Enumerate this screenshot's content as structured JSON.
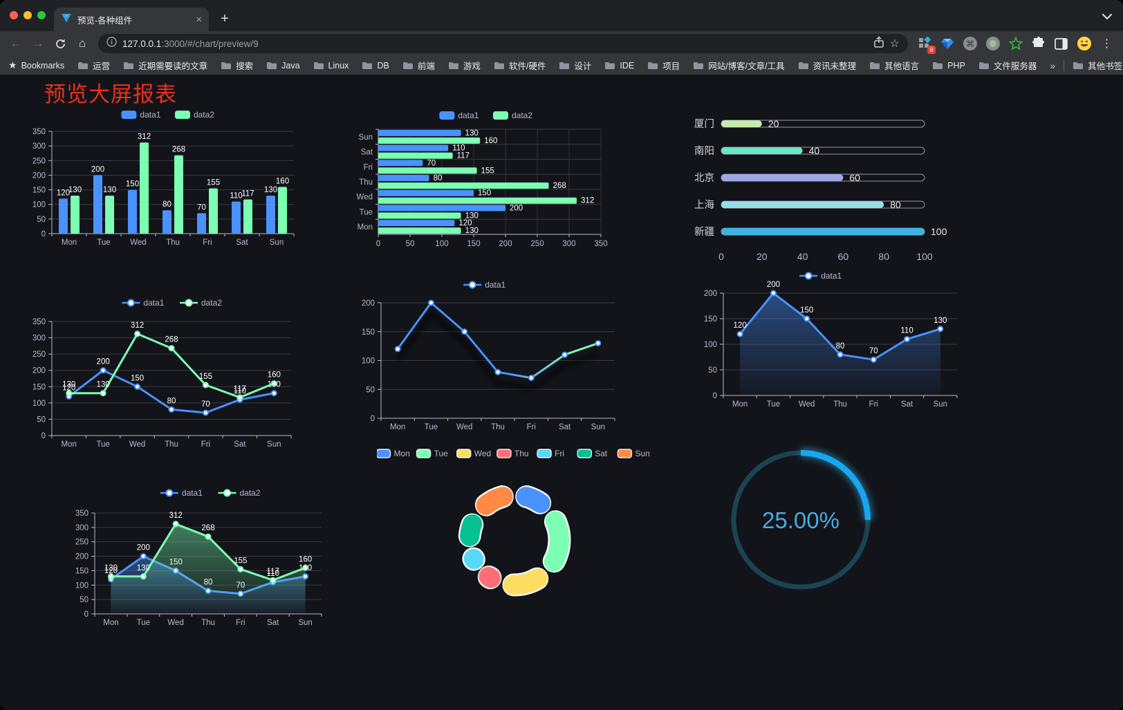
{
  "browser": {
    "tab": {
      "title": "预览-各种组件"
    },
    "url": {
      "host": "127.0.0.1",
      "rest": ":3000/#/chart/preview/9"
    },
    "glyphs": {
      "back": "←",
      "forward": "→",
      "home": "⌂",
      "star": "☆",
      "bookmarks_star": "★",
      "close_tab": "×",
      "new_tab": "+",
      "menu": "⋮",
      "cmd": "⌘",
      "overflow": "»"
    },
    "extensions": {
      "badge": "9"
    },
    "bookmarks": {
      "label": "Bookmarks",
      "items": [
        "运营",
        "近期需要读的文章",
        "搜索",
        "Java",
        "Linux",
        "DB",
        "前端",
        "游戏",
        "软件/硬件",
        "设计",
        "IDE",
        "项目",
        "网站/博客/文章/工具",
        "资讯未整理",
        "其他语言",
        "PHP",
        "文件服务器"
      ],
      "other_label": "其他书签"
    }
  },
  "page": {
    "title": "预览大屏报表",
    "title_color": "#e8311c",
    "background": "#13141a"
  },
  "palette": {
    "data1_blue": "#4992ff",
    "data2_green": "#7cffb2",
    "axis_text": "#B9B8CE",
    "grid_line": "#393a44",
    "value_label": "#ffffff"
  },
  "chart_data": [
    {
      "id": "bar-grouped-vertical",
      "type": "bar",
      "categories": [
        "Mon",
        "Tue",
        "Wed",
        "Thu",
        "Fri",
        "Sat",
        "Sun"
      ],
      "series": [
        {
          "name": "data1",
          "color": "#4992ff",
          "values": [
            120,
            200,
            150,
            80,
            70,
            110,
            130
          ]
        },
        {
          "name": "data2",
          "color": "#7cffb2",
          "values": [
            130,
            130,
            312,
            268,
            155,
            117,
            160
          ]
        }
      ],
      "ylim": [
        0,
        350
      ],
      "yticks": [
        0,
        50,
        100,
        150,
        200,
        250,
        300,
        350
      ],
      "legend_position": "top",
      "grid": true,
      "point_labels": true
    },
    {
      "id": "bar-grouped-horizontal",
      "type": "bar-horizontal",
      "categories": [
        "Mon",
        "Tue",
        "Wed",
        "Thu",
        "Fri",
        "Sat",
        "Sun"
      ],
      "categories_top_to_bottom": [
        "Sun",
        "Sat",
        "Fri",
        "Thu",
        "Wed",
        "Tue",
        "Mon"
      ],
      "series": [
        {
          "name": "data1",
          "color": "#4992ff",
          "values": [
            120,
            200,
            150,
            80,
            70,
            110,
            130
          ]
        },
        {
          "name": "data2",
          "color": "#7cffb2",
          "values": [
            130,
            130,
            312,
            268,
            155,
            117,
            160
          ]
        }
      ],
      "xlim": [
        0,
        350
      ],
      "xticks": [
        0,
        50,
        100,
        150,
        200,
        250,
        300,
        350
      ],
      "legend_position": "top",
      "point_labels": true
    },
    {
      "id": "progress-bars",
      "type": "bar-horizontal-progress",
      "rows": [
        {
          "label": "厦门",
          "value": 20,
          "color": "#c4ebad"
        },
        {
          "label": "南阳",
          "value": 40,
          "color": "#6be6c1"
        },
        {
          "label": "北京",
          "value": 60,
          "color": "#a0a7e6"
        },
        {
          "label": "上海",
          "value": 80,
          "color": "#96dee8"
        },
        {
          "label": "新疆",
          "value": 100,
          "color": "#3fb1e3"
        }
      ],
      "xlim": [
        0,
        100
      ],
      "xticks": [
        0,
        20,
        40,
        60,
        80,
        100
      ]
    },
    {
      "id": "line-two-series",
      "type": "line",
      "categories": [
        "Mon",
        "Tue",
        "Wed",
        "Thu",
        "Fri",
        "Sat",
        "Sun"
      ],
      "series": [
        {
          "name": "data1",
          "color": "#4992ff",
          "values": [
            120,
            200,
            150,
            80,
            70,
            110,
            130
          ]
        },
        {
          "name": "data2",
          "color": "#7cffb2",
          "values": [
            130,
            130,
            312,
            268,
            155,
            117,
            160
          ]
        }
      ],
      "ylim": [
        0,
        350
      ],
      "yticks": [
        0,
        50,
        100,
        150,
        200,
        250,
        300,
        350
      ],
      "legend_position": "top",
      "point_labels": true
    },
    {
      "id": "line-gradient",
      "type": "line",
      "categories": [
        "Mon",
        "Tue",
        "Wed",
        "Thu",
        "Fri",
        "Sat",
        "Sun"
      ],
      "series": [
        {
          "name": "data1",
          "color": "#4992ff",
          "gradient": [
            "#4992ff",
            "#7cffb2"
          ],
          "values": [
            120,
            200,
            150,
            80,
            70,
            110,
            130
          ]
        }
      ],
      "ylim": [
        0,
        200
      ],
      "yticks": [
        0,
        50,
        100,
        150,
        200
      ],
      "legend_position": "top",
      "point_labels": false,
      "line_shadow": true
    },
    {
      "id": "area-single",
      "type": "area",
      "categories": [
        "Mon",
        "Tue",
        "Wed",
        "Thu",
        "Fri",
        "Sat",
        "Sun"
      ],
      "series": [
        {
          "name": "data1",
          "color": "#4992ff",
          "values": [
            120,
            200,
            150,
            80,
            70,
            110,
            130
          ]
        }
      ],
      "ylim": [
        0,
        200
      ],
      "yticks": [
        0,
        50,
        100,
        150,
        200
      ],
      "legend_position": "top",
      "point_labels": true
    },
    {
      "id": "line-area-two-series",
      "type": "area",
      "categories": [
        "Mon",
        "Tue",
        "Wed",
        "Thu",
        "Fri",
        "Sat",
        "Sun"
      ],
      "series": [
        {
          "name": "data1",
          "color": "#4992ff",
          "values": [
            120,
            200,
            150,
            80,
            70,
            110,
            130
          ]
        },
        {
          "name": "data2",
          "color": "#7cffb2",
          "values": [
            130,
            130,
            312,
            268,
            155,
            117,
            160
          ]
        }
      ],
      "ylim": [
        0,
        350
      ],
      "yticks": [
        0,
        50,
        100,
        150,
        200,
        250,
        300,
        350
      ],
      "legend_position": "top",
      "point_labels": true
    },
    {
      "id": "donut",
      "type": "pie",
      "categories": [
        "Mon",
        "Tue",
        "Wed",
        "Thu",
        "Fri",
        "Sat",
        "Sun"
      ],
      "values": [
        120,
        200,
        150,
        80,
        70,
        110,
        130
      ],
      "colors": [
        "#4992ff",
        "#7cffb2",
        "#fddd60",
        "#ff6e76",
        "#58d9f9",
        "#05c091",
        "#ff8a45"
      ],
      "legend_position": "top",
      "inner_radius_ratio": 0.62
    },
    {
      "id": "gauge-ring",
      "type": "gauge",
      "percent": 25,
      "value_label": "25.00%",
      "track_color": "#1b4453",
      "bar_color": "#17a7f0",
      "text_color": "#4aabdf"
    }
  ]
}
